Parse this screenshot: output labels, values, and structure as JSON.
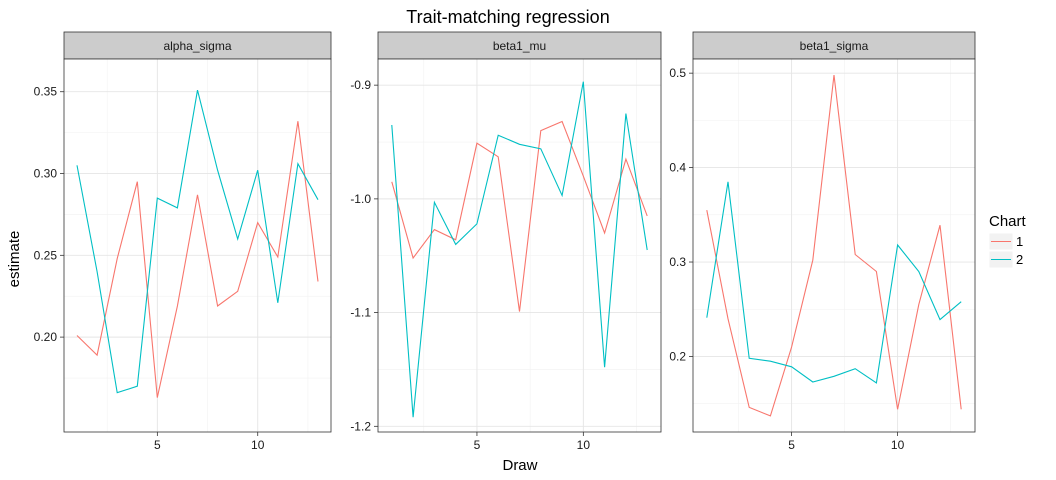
{
  "chart_data": {
    "type": "line",
    "title": "Trait-matching regression",
    "xlabel": "Draw",
    "ylabel": "estimate",
    "grid": true,
    "x": [
      1,
      2,
      3,
      4,
      5,
      6,
      7,
      8,
      9,
      10,
      11,
      12,
      13
    ],
    "x_ticks": [
      5,
      10
    ],
    "xlim": [
      0.35,
      13.65
    ],
    "legend": {
      "title": "Chart",
      "placement": "right",
      "entries": [
        {
          "label": "1",
          "color": "#F8766D"
        },
        {
          "label": "2",
          "color": "#00BFC4"
        }
      ]
    },
    "colors": {
      "chain1": "#F8766D",
      "chain2": "#00BFC4"
    },
    "panels": [
      {
        "name": "alpha_sigma",
        "ylim": [
          0.142,
          0.37
        ],
        "y_ticks": [
          0.2,
          0.25,
          0.3,
          0.35
        ],
        "y_tick_labels": [
          "0.20",
          "0.25",
          "0.30",
          "0.35"
        ],
        "series": [
          {
            "name": "1",
            "values": [
              0.201,
              0.189,
              0.248,
              0.295,
              0.163,
              0.219,
              0.287,
              0.219,
              0.228,
              0.27,
              0.249,
              0.332,
              0.234
            ]
          },
          {
            "name": "2",
            "values": [
              0.305,
              0.24,
              0.166,
              0.17,
              0.285,
              0.279,
              0.351,
              0.302,
              0.26,
              0.302,
              0.221,
              0.306,
              0.284
            ]
          }
        ]
      },
      {
        "name": "beta1_mu",
        "ylim": [
          -1.205,
          -0.877
        ],
        "y_ticks": [
          -1.2,
          -1.1,
          -1.0,
          -0.9
        ],
        "y_tick_labels": [
          "-1.2",
          "-1.1",
          "-1.0",
          "-0.9"
        ],
        "series": [
          {
            "name": "1",
            "values": [
              -0.985,
              -1.052,
              -1.027,
              -1.036,
              -0.951,
              -0.963,
              -1.099,
              -0.94,
              -0.932,
              -0.98,
              -1.03,
              -0.965,
              -1.015
            ]
          },
          {
            "name": "2",
            "values": [
              -0.935,
              -1.192,
              -1.003,
              -1.04,
              -1.022,
              -0.944,
              -0.952,
              -0.956,
              -0.997,
              -0.897,
              -1.148,
              -0.925,
              -1.045
            ]
          }
        ]
      },
      {
        "name": "beta1_sigma",
        "ylim": [
          0.12,
          0.515
        ],
        "y_ticks": [
          0.2,
          0.3,
          0.4,
          0.5
        ],
        "y_tick_labels": [
          "0.2",
          "0.3",
          "0.4",
          "0.5"
        ],
        "series": [
          {
            "name": "1",
            "values": [
              0.355,
              0.24,
              0.146,
              0.137,
              0.21,
              0.302,
              0.498,
              0.308,
              0.29,
              0.144,
              0.255,
              0.339,
              0.144
            ]
          },
          {
            "name": "2",
            "values": [
              0.241,
              0.385,
              0.198,
              0.195,
              0.189,
              0.173,
              0.179,
              0.187,
              0.172,
              0.318,
              0.29,
              0.239,
              0.258
            ]
          }
        ]
      }
    ]
  }
}
